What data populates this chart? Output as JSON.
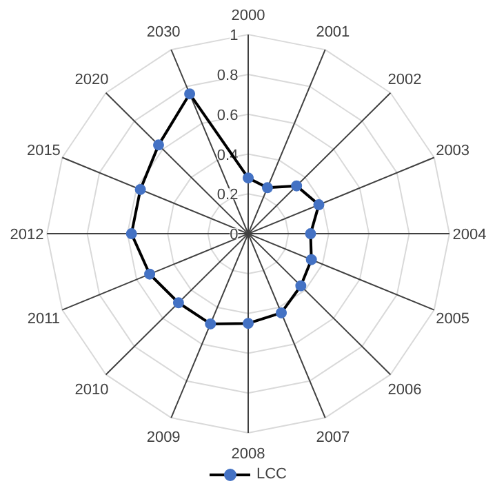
{
  "chart_data": {
    "type": "radar",
    "categories": [
      "2000",
      "2001",
      "2002",
      "2003",
      "2004",
      "2005",
      "2006",
      "2007",
      "2008",
      "2009",
      "2010",
      "2011",
      "2012",
      "2015",
      "2020",
      "2030"
    ],
    "series": [
      {
        "name": "LCC",
        "color": "#000000",
        "values": [
          0.28,
          0.25,
          0.34,
          0.38,
          0.31,
          0.34,
          0.37,
          0.43,
          0.45,
          0.49,
          0.49,
          0.53,
          0.58,
          0.58,
          0.63,
          0.76
        ]
      }
    ],
    "ylim": [
      0,
      1
    ],
    "yticks": [
      0,
      0.2,
      0.4,
      0.6,
      0.8,
      1
    ],
    "marker": "circle",
    "legend": "bottom",
    "grid": true
  }
}
